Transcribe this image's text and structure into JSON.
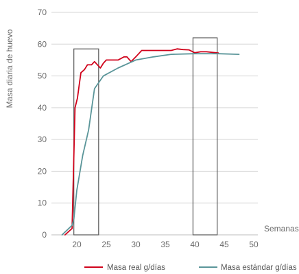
{
  "chart_data": {
    "type": "line",
    "xlabel": "Semanas",
    "ylabel": "Masa diaria de huevo",
    "xlim": [
      16.5,
      50
    ],
    "ylim": [
      0,
      70
    ],
    "x_ticks": [
      20,
      25,
      30,
      35,
      40,
      45,
      50
    ],
    "y_ticks": [
      0,
      10,
      20,
      30,
      40,
      50,
      60,
      70
    ],
    "grid": true,
    "legend_position": "bottom",
    "series": [
      {
        "name": "Masa real g/días",
        "color": "#d0021b",
        "points": [
          [
            18.0,
            0
          ],
          [
            19.2,
            2
          ],
          [
            19.7,
            40
          ],
          [
            20.1,
            43
          ],
          [
            20.4,
            47
          ],
          [
            20.7,
            51
          ],
          [
            21.3,
            52
          ],
          [
            21.8,
            53.5
          ],
          [
            22.5,
            53.5
          ],
          [
            23.0,
            54.5
          ],
          [
            23.5,
            53.5
          ],
          [
            24.0,
            52.5
          ],
          [
            24.5,
            54
          ],
          [
            25.0,
            55
          ],
          [
            26.0,
            55
          ],
          [
            27.0,
            55
          ],
          [
            28.0,
            56
          ],
          [
            28.5,
            56
          ],
          [
            29.2,
            54.5
          ],
          [
            30.0,
            56
          ],
          [
            31.0,
            58
          ],
          [
            32.0,
            58
          ],
          [
            33.0,
            58
          ],
          [
            34.0,
            58
          ],
          [
            35.0,
            58
          ],
          [
            36.0,
            58
          ],
          [
            37.0,
            58.5
          ],
          [
            38.0,
            58.3
          ],
          [
            39.0,
            58.2
          ],
          [
            40.0,
            57.3
          ],
          [
            41.0,
            57.6
          ],
          [
            42.0,
            57.6
          ],
          [
            43.0,
            57.4
          ],
          [
            44.0,
            57.2
          ]
        ]
      },
      {
        "name": "Masa estándar g/días",
        "color": "#5a9599",
        "points": [
          [
            17.5,
            0
          ],
          [
            19.2,
            3
          ],
          [
            19.5,
            5
          ],
          [
            20.0,
            14
          ],
          [
            21.0,
            25
          ],
          [
            22.0,
            33
          ],
          [
            23.0,
            46
          ],
          [
            24.5,
            50
          ],
          [
            27.0,
            52.5
          ],
          [
            30.0,
            55
          ],
          [
            33.0,
            56
          ],
          [
            36.0,
            56.8
          ],
          [
            40.0,
            57
          ],
          [
            44.0,
            57
          ],
          [
            47.5,
            56.8
          ]
        ]
      }
    ],
    "annotations": [
      {
        "type": "rectangle",
        "x_range": [
          19.5,
          23.7
        ],
        "y_range": [
          0,
          58.5
        ]
      },
      {
        "type": "rectangle",
        "x_range": [
          39.7,
          43.8
        ],
        "y_range": [
          0,
          62
        ]
      }
    ]
  }
}
